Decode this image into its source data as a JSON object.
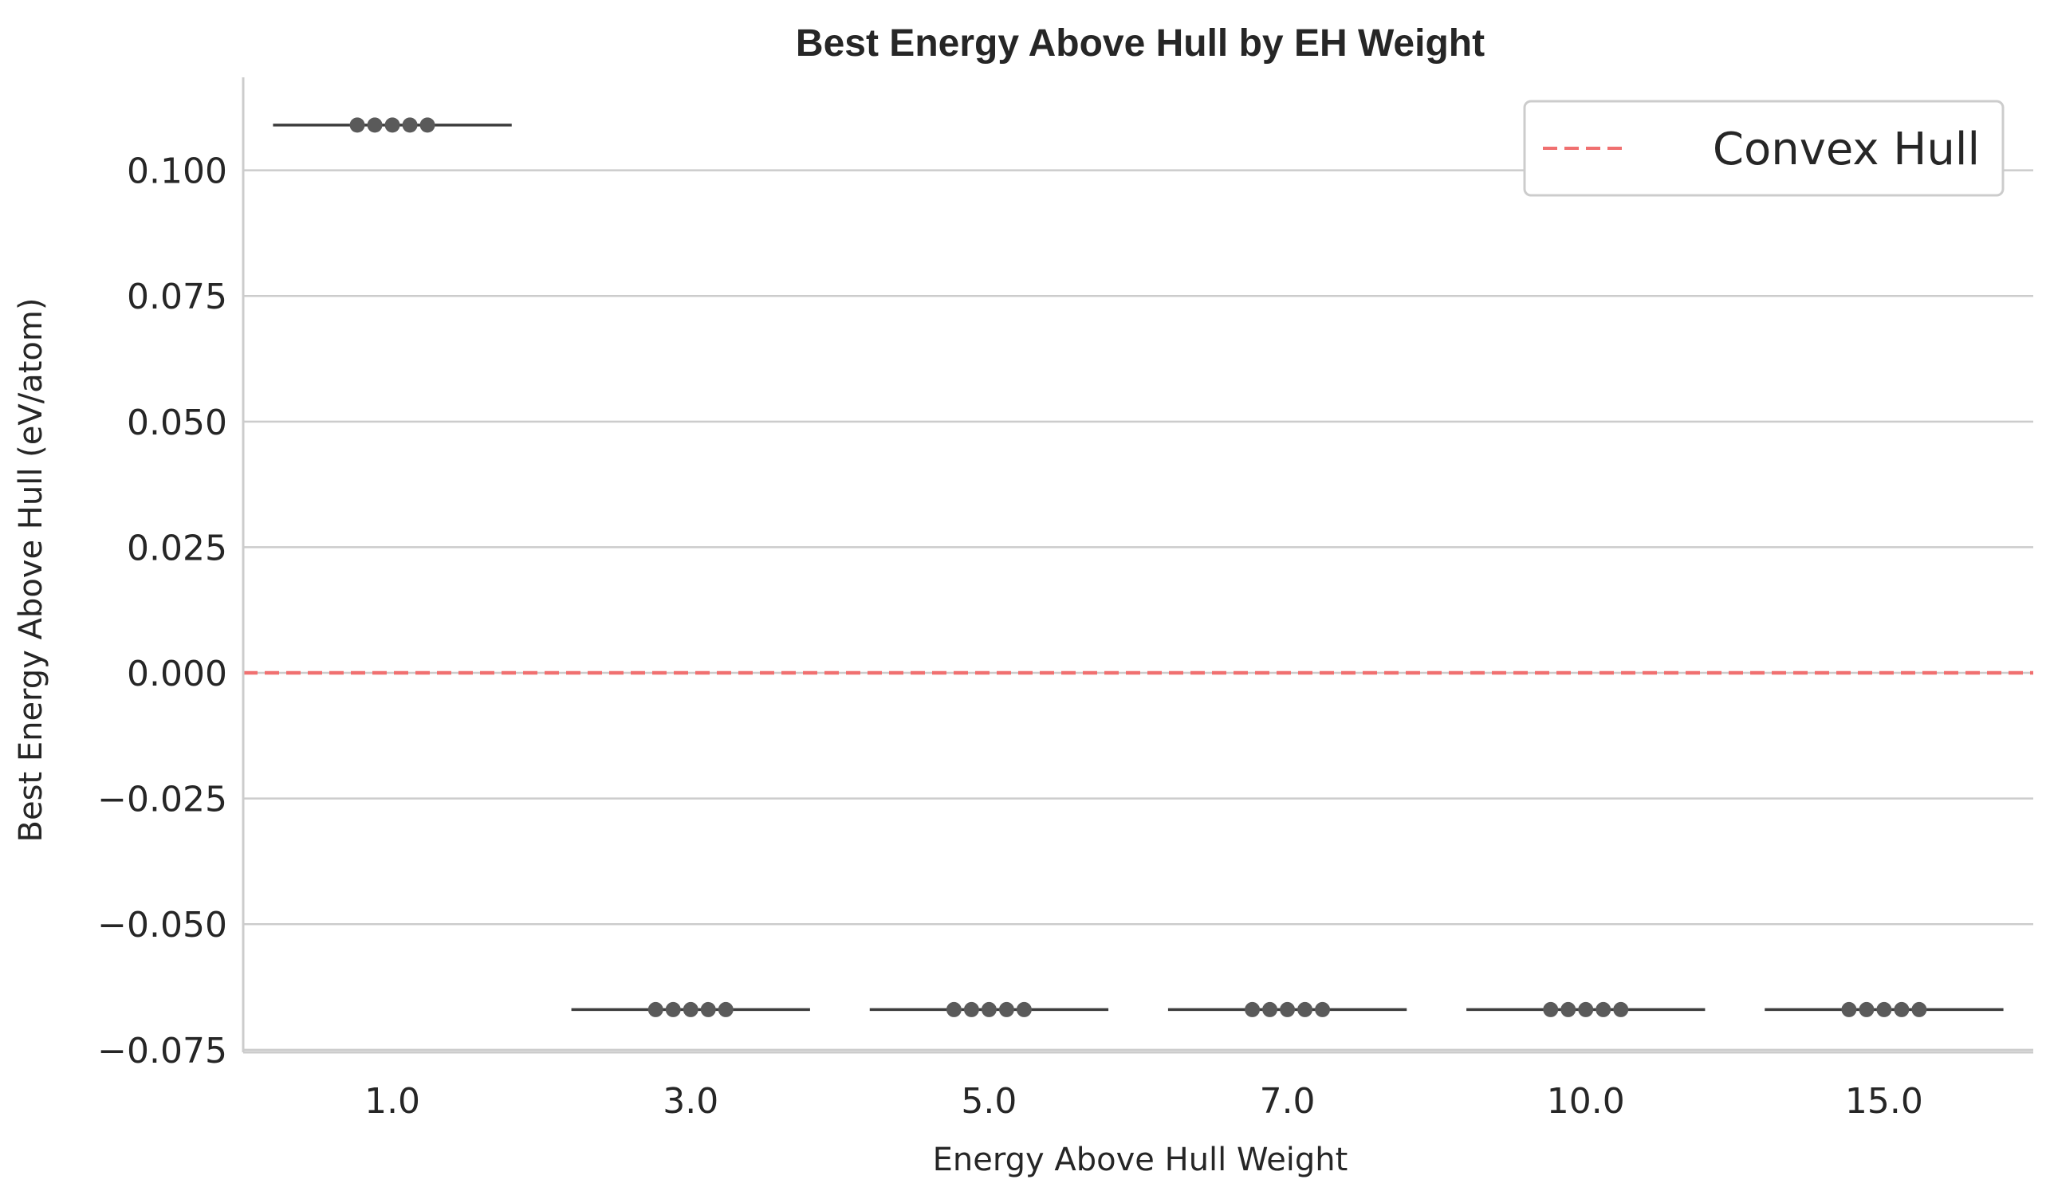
{
  "chart_data": {
    "type": "box",
    "title": "Best Energy Above Hull by EH Weight",
    "xlabel": "Energy Above Hull Weight",
    "ylabel": "Best Energy Above Hull (eV/atom)",
    "categories": [
      "1.0",
      "3.0",
      "5.0",
      "7.0",
      "10.0",
      "15.0"
    ],
    "points": [
      {
        "category": "1.0",
        "values": [
          0.109,
          0.109,
          0.109,
          0.109,
          0.109
        ]
      },
      {
        "category": "3.0",
        "values": [
          -0.067,
          -0.067,
          -0.067,
          -0.067,
          -0.067
        ]
      },
      {
        "category": "5.0",
        "values": [
          -0.067,
          -0.067,
          -0.067,
          -0.067,
          -0.067
        ]
      },
      {
        "category": "7.0",
        "values": [
          -0.067,
          -0.067,
          -0.067,
          -0.067,
          -0.067
        ]
      },
      {
        "category": "10.0",
        "values": [
          -0.067,
          -0.067,
          -0.067,
          -0.067,
          -0.067
        ]
      },
      {
        "category": "15.0",
        "values": [
          -0.067,
          -0.067,
          -0.067,
          -0.067,
          -0.067
        ]
      }
    ],
    "medians": [
      0.109,
      -0.067,
      -0.067,
      -0.067,
      -0.067,
      -0.067
    ],
    "yticks": [
      0.1,
      0.075,
      0.05,
      0.025,
      0.0,
      -0.025,
      -0.05,
      -0.075
    ],
    "ytick_labels": [
      "0.100",
      "0.075",
      "0.050",
      "0.025",
      "0.000",
      "−0.025",
      "−0.050",
      "−0.075"
    ],
    "ylim": [
      -0.0755,
      0.1185
    ],
    "reference_line": {
      "value": 0.0,
      "label": "Convex Hull",
      "color": "#f07070",
      "style": "dashed"
    },
    "grid": "horizontal",
    "legend_position": "top-right",
    "colors": {
      "points": "#5a5a5a",
      "median": "#3d3d3d",
      "grid": "#cccccc",
      "axes": "#cccccc",
      "reference": "#f07070"
    }
  }
}
